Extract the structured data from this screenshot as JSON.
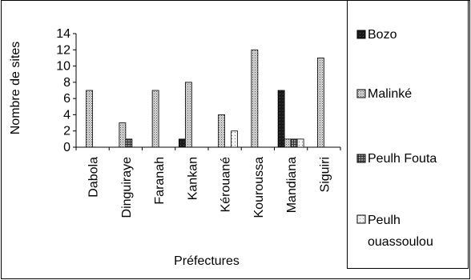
{
  "chart_data": {
    "type": "bar",
    "title": "",
    "xlabel": "Préfectures",
    "ylabel": "Nombre de sites",
    "ylim": [
      0,
      14
    ],
    "yticks": [
      0,
      2,
      4,
      6,
      8,
      10,
      12,
      14
    ],
    "grid": false,
    "legend_position": "right",
    "categories": [
      "Dabola",
      "Dinguiraye",
      "Faranah",
      "Kankan",
      "Kérouané",
      "Kouroussa",
      "Mandiana",
      "Siguiri"
    ],
    "series": [
      {
        "name": "Bozo",
        "values": [
          0,
          0,
          0,
          1,
          0,
          0,
          7,
          0
        ],
        "color": "#1a1a1a",
        "pattern": "solid-dark"
      },
      {
        "name": "Malinké",
        "values": [
          7,
          3,
          7,
          8,
          4,
          12,
          1,
          11
        ],
        "color": "#bdbdbd",
        "pattern": "fine-dots"
      },
      {
        "name": "Peulh Fouta",
        "values": [
          0,
          1,
          0,
          0,
          0,
          0,
          1,
          0
        ],
        "color": "#7a7a7a",
        "pattern": "dark-grid"
      },
      {
        "name": "Peulh ouassoulou",
        "values": [
          0,
          0,
          0,
          0,
          2,
          0,
          1,
          0
        ],
        "color": "#ededed",
        "pattern": "light-dots"
      }
    ]
  },
  "legend": {
    "items": [
      {
        "label": "Bozo"
      },
      {
        "label": "Malinké"
      },
      {
        "label": "Peulh Fouta"
      },
      {
        "label_line1": "Peulh",
        "label_line2": "ouassoulou"
      }
    ]
  }
}
